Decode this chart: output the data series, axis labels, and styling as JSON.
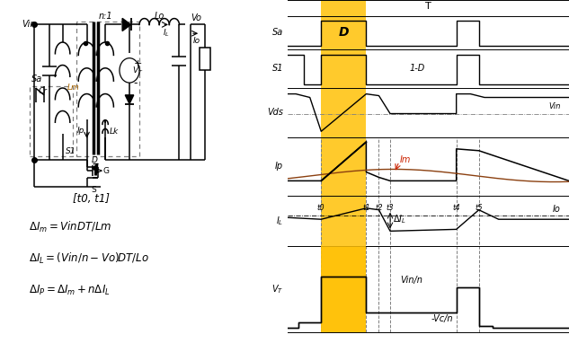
{
  "bg_color": "#FFFFFF",
  "line_color": "#000000",
  "yellow_color": "#FFC107",
  "gray_color": "#888888",
  "red_color": "#CC2200",
  "brown_color": "#8B4010",
  "circuit_text": "[t0, t1]",
  "eq1": "$\\Delta I_m =VinDT / Lm$",
  "eq2": "$\\Delta I_L =(Vin / n-Vo)DT / Lo$",
  "eq3": "$\\Delta I_P =\\Delta I_m +n\\Delta I_L$"
}
